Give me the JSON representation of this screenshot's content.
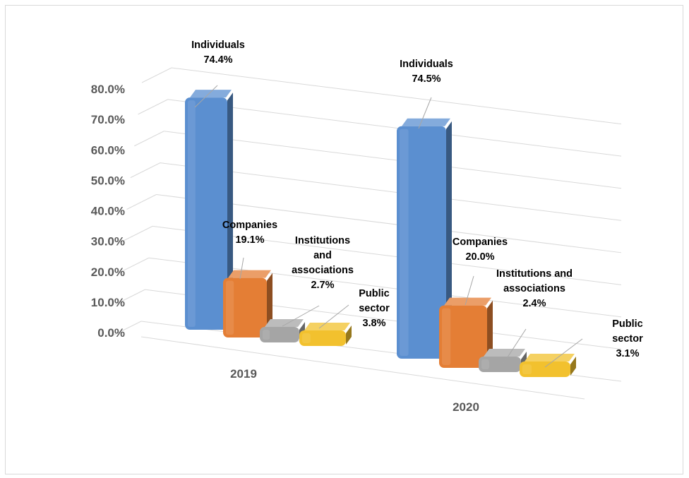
{
  "chart_data": {
    "type": "bar",
    "title": "",
    "xlabel": "",
    "ylabel": "",
    "categories": [
      "2019",
      "2020"
    ],
    "series": [
      {
        "name": "Individuals",
        "values": [
          74.4,
          74.5
        ],
        "color": "#5b8fd0",
        "label_lines": [
          "Individuals"
        ]
      },
      {
        "name": "Companies",
        "values": [
          19.1,
          20.0
        ],
        "color": "#e47e35",
        "label_lines": [
          "Companies"
        ]
      },
      {
        "name": "Institutions and associations",
        "values": [
          2.7,
          2.4
        ],
        "color": "#a5a5a5",
        "label_lines_by_category": [
          [
            "Institutions",
            "and",
            "associations"
          ],
          [
            "Institutions and",
            "associations"
          ]
        ]
      },
      {
        "name": "Public sector",
        "values": [
          3.8,
          3.1
        ],
        "color": "#f2c12e",
        "label_lines_by_category": [
          [
            "Public",
            "sector"
          ],
          [
            "Public",
            "sector"
          ]
        ]
      }
    ],
    "value_labels": [
      [
        "74.4%",
        "19.1%",
        "2.7%",
        "3.8%"
      ],
      [
        "74.5%",
        "20.0%",
        "2.4%",
        "3.1%"
      ]
    ],
    "ylim": [
      0,
      80
    ],
    "y_ticks": [
      "0.0%",
      "10.0%",
      "20.0%",
      "30.0%",
      "40.0%",
      "50.0%",
      "60.0%",
      "70.0%",
      "80.0%"
    ],
    "grid": true,
    "legend": "none",
    "style": "3d-column"
  }
}
